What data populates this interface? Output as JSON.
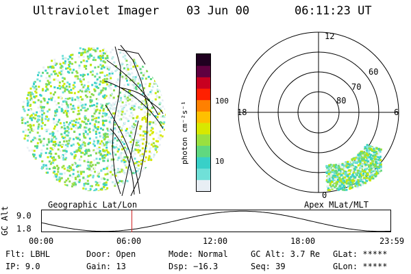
{
  "header": {
    "instrument": "Ultraviolet Imager",
    "date": "03 Jun 00",
    "time": "06:11:23 UT"
  },
  "globe_panel": {
    "caption": "Geographic Lat/Lon"
  },
  "colorbar": {
    "unit_label": "photon cm⁻²s⁻¹",
    "ticks": [
      "100",
      "10"
    ],
    "colors": [
      "#e8eef4",
      "#70e0d8",
      "#38d0c8",
      "#60d880",
      "#9ae040",
      "#d8e800",
      "#ffc000",
      "#ff8000",
      "#ff2000",
      "#c80020",
      "#600040",
      "#200020"
    ]
  },
  "polar_panel": {
    "caption": "Apex MLat/MLT",
    "mlt_labels": {
      "top": "12",
      "left": "18",
      "right": "6",
      "bottom": "0"
    },
    "lat_labels": [
      "60",
      "70",
      "80"
    ]
  },
  "altitude_plot": {
    "ylabel": "GC Alt",
    "y_ticks": [
      "9.0",
      "1.8"
    ],
    "x_ticks": [
      "00:00",
      "06:00",
      "12:00",
      "18:00",
      "23:59"
    ],
    "marker_hour": 6.19
  },
  "status": {
    "row1": {
      "filter": "Flt: LBHL",
      "door": "Door: Open",
      "mode": "Mode: Normal",
      "gc_alt": "GC Alt: 3.7 Re",
      "glat": "GLat: *****"
    },
    "row2": {
      "ip": "IP:  9.0",
      "gain": "Gain: 13",
      "dsp": "Dsp:  −16.3",
      "seq": "Seq: 39",
      "glon": "GLon: *****"
    }
  }
}
